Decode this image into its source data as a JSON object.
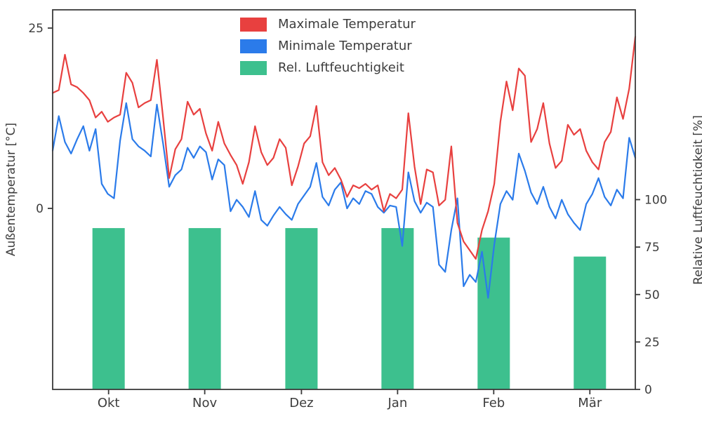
{
  "chart_data": {
    "type": "line+bar",
    "title": "",
    "left_axis": {
      "label": "Außentemperatur [°C]",
      "ticks": [
        0,
        25
      ],
      "min": -25.1,
      "max": 27.5
    },
    "right_axis": {
      "label": "Relative Luftfeuchtigkeit [%]",
      "ticks": [
        0,
        25,
        50,
        75,
        100
      ],
      "min": 0,
      "max": 200
    },
    "months": [
      "Okt",
      "Nov",
      "Dez",
      "Jan",
      "Feb",
      "Mär"
    ],
    "month_centers_frac": [
      0.096,
      0.261,
      0.427,
      0.592,
      0.757,
      0.922
    ],
    "humidity": [
      85,
      85,
      85,
      85,
      80,
      70
    ],
    "temp_max": [
      16.0,
      16.4,
      21.3,
      17.2,
      16.8,
      16.0,
      15.0,
      12.6,
      13.4,
      12.0,
      12.6,
      13.0,
      18.8,
      17.4,
      14.0,
      14.6,
      15.0,
      20.6,
      12.6,
      4.2,
      8.2,
      9.6,
      14.8,
      13.0,
      13.8,
      10.4,
      8.0,
      12.0,
      9.0,
      7.4,
      6.0,
      3.4,
      6.4,
      11.4,
      7.8,
      6.0,
      7.0,
      9.6,
      8.4,
      3.2,
      5.8,
      9.0,
      10.0,
      14.2,
      6.4,
      4.6,
      5.6,
      4.0,
      1.6,
      3.2,
      2.8,
      3.4,
      2.6,
      3.2,
      -0.4,
      2.0,
      1.4,
      2.6,
      13.2,
      5.8,
      0.6,
      5.4,
      5.0,
      0.4,
      1.2,
      8.6,
      -2.0,
      -4.6,
      -5.8,
      -7.0,
      -3.0,
      -0.4,
      3.4,
      12.0,
      17.6,
      13.6,
      19.4,
      18.4,
      9.2,
      11.0,
      14.6,
      9.0,
      5.6,
      6.6,
      11.6,
      10.2,
      11.0,
      8.0,
      6.4,
      5.4,
      9.2,
      10.6,
      15.4,
      12.4,
      16.6,
      23.8
    ],
    "temp_min": [
      8.0,
      12.8,
      9.2,
      7.6,
      9.6,
      11.4,
      8.0,
      11.0,
      3.4,
      2.0,
      1.4,
      9.4,
      14.6,
      9.6,
      8.6,
      8.0,
      7.2,
      14.4,
      9.0,
      3.0,
      4.6,
      5.4,
      8.4,
      7.0,
      8.6,
      7.8,
      4.0,
      6.8,
      6.0,
      -0.4,
      1.2,
      0.2,
      -1.2,
      2.4,
      -1.6,
      -2.4,
      -1.0,
      0.2,
      -0.8,
      -1.6,
      0.6,
      1.8,
      3.0,
      6.3,
      1.6,
      0.4,
      2.6,
      3.6,
      0.0,
      1.4,
      0.6,
      2.4,
      2.0,
      0.2,
      -0.6,
      0.4,
      0.2,
      -5.2,
      5.0,
      1.0,
      -0.6,
      0.8,
      0.2,
      -7.8,
      -8.8,
      -3.0,
      1.4,
      -10.8,
      -9.2,
      -10.2,
      -6.0,
      -12.4,
      -5.0,
      0.6,
      2.4,
      1.2,
      7.6,
      5.2,
      2.2,
      0.6,
      3.0,
      0.2,
      -1.4,
      1.2,
      -0.8,
      -2.0,
      -3.0,
      0.6,
      2.0,
      4.2,
      1.6,
      0.4,
      2.6,
      1.4,
      9.8,
      7.0
    ],
    "legend": [
      {
        "label": "Maximale Temperatur",
        "color": "#e8403f"
      },
      {
        "label": "Minimale Temperatur",
        "color": "#2b7bea"
      },
      {
        "label": "Rel. Luftfeuchtigkeit",
        "color": "#3dc08e"
      }
    ],
    "colors": {
      "max": "#e8403f",
      "min": "#2b7bea",
      "humidity": "#3dc08e",
      "axis": "#3a3a3a",
      "text": "#3d3d3d"
    }
  }
}
